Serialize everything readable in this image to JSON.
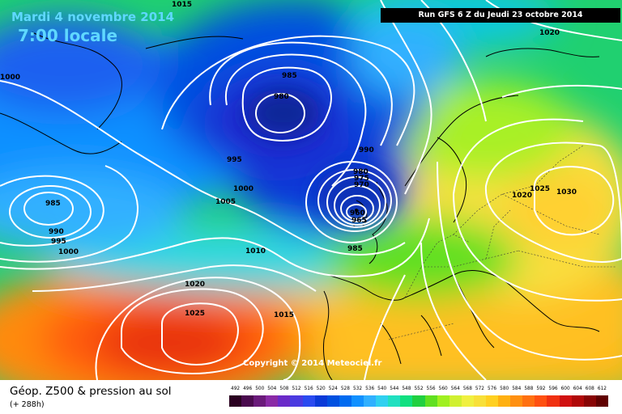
{
  "header": {
    "date": "Mardi 4 novembre 2014",
    "time": "7:00 locale",
    "run": "Run GFS 6 Z du Jeudi 23 octobre 2014",
    "copyright": "Copyright © 2014 Meteociel.fr"
  },
  "legend": {
    "title": "Géop. Z500 & pression au sol",
    "subtitle": "(+ 288h)",
    "values": [
      "492",
      "496",
      "500",
      "504",
      "508",
      "512",
      "516",
      "520",
      "524",
      "528",
      "532",
      "536",
      "540",
      "544",
      "548",
      "552",
      "556",
      "560",
      "564",
      "568",
      "572",
      "576",
      "580",
      "584",
      "588",
      "592",
      "596",
      "600",
      "604",
      "608",
      "612"
    ],
    "colors": [
      "#2a0020",
      "#4a0a4e",
      "#6a1a7a",
      "#8a2aa6",
      "#6a2ac8",
      "#4a3ae0",
      "#2a4af0",
      "#0a3ad8",
      "#0050e0",
      "#006af0",
      "#1090ff",
      "#30b0ff",
      "#30d0f0",
      "#20e0c0",
      "#10e080",
      "#20d040",
      "#60e020",
      "#a0f020",
      "#d0f030",
      "#f0f040",
      "#f8e038",
      "#ffd020",
      "#ffb010",
      "#ff9010",
      "#ff7010",
      "#ff5010",
      "#f03010",
      "#d01010",
      "#b00808",
      "#880404",
      "#600000"
    ]
  },
  "isobars": {
    "labels": [
      "1000",
      "1015",
      "1020",
      "985",
      "980",
      "995",
      "990",
      "1000",
      "1005",
      "985",
      "990",
      "995",
      "1000",
      "980",
      "975",
      "970",
      "960",
      "965",
      "985",
      "1010",
      "1020",
      "1025",
      "1030",
      "1020",
      "1025",
      "1015"
    ]
  }
}
